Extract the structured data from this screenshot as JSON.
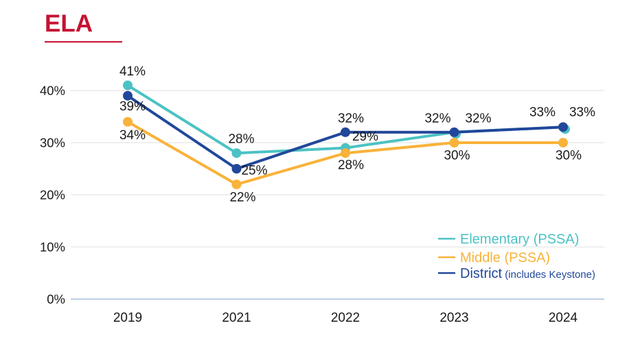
{
  "title": {
    "text": "ELA",
    "color": "#C51332"
  },
  "colors": {
    "grid": "#E6E5E7",
    "axis_zero_line": "#BCCDE6",
    "label": "#1A1A1A",
    "background": "#FFFFFF"
  },
  "chart_data": {
    "type": "line",
    "title": "ELA",
    "categories": [
      "2019",
      "2021",
      "2022",
      "2023",
      "2024"
    ],
    "xlabel": "",
    "ylabel": "",
    "yaxis": {
      "ticks": [
        0,
        10,
        20,
        30,
        40
      ],
      "unit": "%",
      "range": [
        0,
        45
      ],
      "grid": true
    },
    "label_format": "{v}%",
    "legend_position": "right-middle",
    "series": [
      {
        "name": "Elementary (PSSA)",
        "color": "#4CC2C4",
        "values": [
          41,
          28,
          29,
          32,
          33
        ],
        "label_offsets": [
          [
            7,
            -21
          ],
          [
            7,
            -21
          ],
          [
            29,
            -17
          ],
          [
            35,
            -21
          ],
          [
            28,
            -22
          ]
        ],
        "dot_offsets": [
          [
            0,
            0
          ],
          [
            0,
            0
          ],
          [
            0,
            0
          ],
          [
            2.5,
            2.5
          ],
          [
            3,
            3
          ]
        ]
      },
      {
        "name": "Middle (PSSA)",
        "color": "#F9B23A",
        "values": [
          34,
          22,
          28,
          30,
          30
        ],
        "label_offsets": [
          [
            7,
            19
          ],
          [
            9,
            18
          ],
          [
            8,
            17
          ],
          [
            4,
            18
          ],
          [
            8,
            18
          ]
        ],
        "dot_offsets": [
          [
            0,
            0
          ],
          [
            0,
            0
          ],
          [
            0,
            0
          ],
          [
            0,
            0
          ],
          [
            0,
            0
          ]
        ]
      },
      {
        "name": "District",
        "legend_suffix": "(includes Keystone)",
        "color": "#21479A",
        "values": [
          39,
          25,
          32,
          32,
          33
        ],
        "label_offsets": [
          [
            7,
            15
          ],
          [
            26,
            2
          ],
          [
            8,
            -21
          ],
          [
            -24,
            -21
          ],
          [
            -30,
            -22
          ]
        ],
        "dot_offsets": [
          [
            0,
            0
          ],
          [
            0,
            0
          ],
          [
            0,
            0
          ],
          [
            0,
            0
          ],
          [
            0,
            0
          ]
        ]
      }
    ]
  }
}
